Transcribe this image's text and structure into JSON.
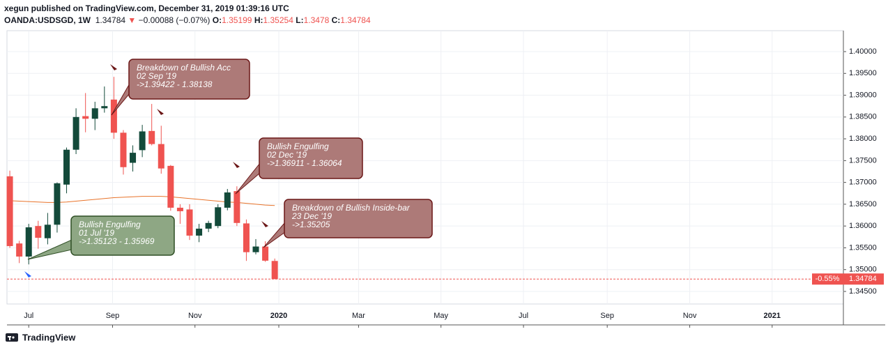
{
  "header": {
    "published": "xegun published on TradingView.com, December 31, 2019 01:39:16 UTC",
    "symbol": "OANDA:USDSGD, 1W",
    "price": "1.34784",
    "arrow": "▼",
    "change": "−0.00088 (−0.07%)",
    "o_label": "O:",
    "h_label": "H:",
    "l_label": "L:",
    "c_label": "C:"
  },
  "chart_data": {
    "type": "candlestick",
    "x": [
      0,
      1,
      2,
      3,
      4,
      5,
      6,
      7,
      8,
      9,
      10,
      11,
      12,
      13,
      14,
      15,
      16,
      17,
      18,
      19,
      20,
      21,
      22,
      23,
      24,
      25,
      26,
      27,
      28
    ],
    "open": [
      1.3714,
      1.356,
      1.353,
      1.36,
      1.3572,
      1.3603,
      1.3695,
      1.3775,
      1.3852,
      1.3846,
      1.387,
      1.389,
      1.3814,
      1.3745,
      1.3774,
      1.3818,
      1.3788,
      1.3738,
      1.3642,
      1.3638,
      1.3578,
      1.3594,
      1.36,
      1.3642,
      1.368,
      1.3606,
      1.354,
      1.3553,
      1.35199
    ],
    "high": [
      1.3727,
      1.3566,
      1.3605,
      1.3612,
      1.363,
      1.37,
      1.378,
      1.387,
      1.3905,
      1.3885,
      1.392,
      1.39422,
      1.382,
      1.3785,
      1.3832,
      1.388,
      1.383,
      1.374,
      1.365,
      1.365,
      1.3605,
      1.3612,
      1.365,
      1.3685,
      1.36911,
      1.3615,
      1.357,
      1.3565,
      1.35254
    ],
    "low": [
      1.355,
      1.3515,
      1.3512,
      1.3548,
      1.3558,
      1.3585,
      1.3675,
      1.3765,
      1.3815,
      1.382,
      1.386,
      1.38,
      1.3718,
      1.3725,
      1.3758,
      1.3785,
      1.372,
      1.3635,
      1.3605,
      1.3568,
      1.3563,
      1.3586,
      1.3595,
      1.3636,
      1.36,
      1.352,
      1.3535,
      1.3518,
      1.3478
    ],
    "close": [
      1.3554,
      1.353,
      1.3597,
      1.3573,
      1.3603,
      1.3698,
      1.3775,
      1.385,
      1.3846,
      1.387,
      1.3875,
      1.3814,
      1.3735,
      1.3768,
      1.3817,
      1.3788,
      1.3732,
      1.3642,
      1.3634,
      1.3578,
      1.3594,
      1.3607,
      1.3643,
      1.3677,
      1.3607,
      1.354,
      1.3553,
      1.35205,
      1.34784
    ],
    "up_color": "#134a3a",
    "down_color": "#ef5350",
    "moving_average": {
      "color": "#e8732a",
      "values": [
        1.3658,
        1.3657,
        1.3656,
        1.3655,
        1.3654,
        1.3654,
        1.3655,
        1.3657,
        1.3659,
        1.3661,
        1.3663,
        1.3665,
        1.3666,
        1.3667,
        1.3668,
        1.3668,
        1.3668,
        1.3667,
        1.3665,
        1.3663,
        1.3661,
        1.3659,
        1.3657,
        1.3655,
        1.3654,
        1.3652,
        1.365,
        1.3648,
        1.3647
      ]
    },
    "xlim": [
      -0.3,
      88.1
    ],
    "xticks": [
      {
        "value": 2,
        "label": "Jul"
      },
      {
        "value": 10.86,
        "label": "Sep"
      },
      {
        "value": 19.57,
        "label": "Nov"
      },
      {
        "value": 28.43,
        "label": "2020"
      },
      {
        "value": 36.86,
        "label": "Mar"
      },
      {
        "value": 45.57,
        "label": "May"
      },
      {
        "value": 54.29,
        "label": "Jul"
      },
      {
        "value": 63.14,
        "label": "Sep"
      },
      {
        "value": 71.86,
        "label": "Nov"
      },
      {
        "value": 80.57,
        "label": "2021"
      }
    ],
    "ylim": [
      1.34212,
      1.4048
    ],
    "yticks": [
      {
        "value": 1.345,
        "label": "1.34500"
      },
      {
        "value": 1.35,
        "label": "1.35000"
      },
      {
        "value": 1.355,
        "label": "1.35500"
      },
      {
        "value": 1.36,
        "label": "1.36000"
      },
      {
        "value": 1.365,
        "label": "1.36500"
      },
      {
        "value": 1.37,
        "label": "1.37000"
      },
      {
        "value": 1.375,
        "label": "1.37500"
      },
      {
        "value": 1.38,
        "label": "1.38000"
      },
      {
        "value": 1.385,
        "label": "1.38500"
      },
      {
        "value": 1.39,
        "label": "1.39000"
      },
      {
        "value": 1.395,
        "label": "1.39500"
      },
      {
        "value": 1.4,
        "label": "1.40000"
      }
    ],
    "grid": true,
    "last_change": "-0.55%",
    "annotations": [
      {
        "lines": [
          "Breakdown of Bullish Acc",
          "02 Sep '19",
          "->1.39422 - 1.38138"
        ],
        "color": "#ad7a78"
      },
      {
        "lines": [
          "Bullish Engulfing",
          "02 Dec '19",
          "->1.36911 - 1.36064"
        ],
        "color": "#ad7a78"
      },
      {
        "lines": [
          "Breakdown of Bullish Inside-bar",
          "23 Dec '19",
          "->1.35205"
        ],
        "color": "#ad7a78"
      },
      {
        "lines": [
          "Bullish Engulfing",
          "01 Jul '19",
          "->1.35123 - 1.35969"
        ],
        "color": "#8ea784"
      }
    ]
  },
  "footer": {
    "brand": "TradingView"
  }
}
